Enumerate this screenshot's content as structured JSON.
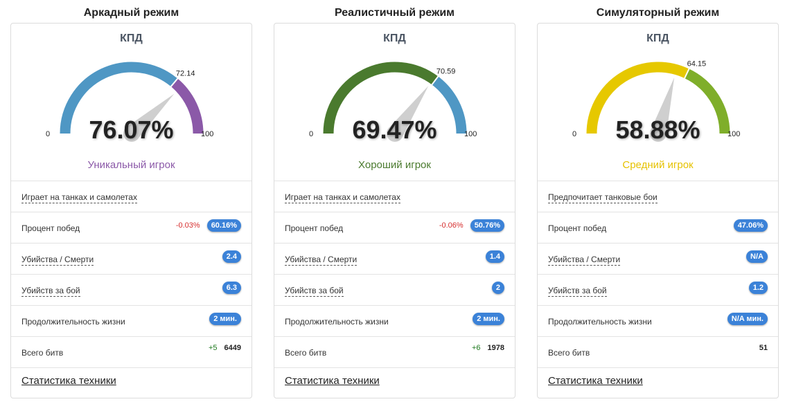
{
  "cards": [
    {
      "title": "Аркадный режим",
      "kpd_label": "КПД",
      "value_text": "76.07%",
      "value": 76.07,
      "marker": 72.14,
      "marker_text": "72.14",
      "min_text": "0",
      "max_text": "100",
      "rating": "Уникальный игрок",
      "rating_color": "#8b59a8",
      "arc_main_color": "#4f97c4",
      "arc_end_color": "#8b59a8",
      "rows": [
        {
          "label": "Играет на танках и самолетах",
          "dotted": true
        },
        {
          "label": "Процент побед",
          "delta": "-0.03%",
          "delta_type": "neg",
          "badge": "60.16%"
        },
        {
          "label": "Убийства / Смерти",
          "dotted": true,
          "badge": "2.4"
        },
        {
          "label": "Убийств за бой",
          "dotted": true,
          "badge": "6.3"
        },
        {
          "label": "Продолжительность жизни",
          "badge": "2 мин."
        },
        {
          "label": "Всего битв",
          "delta": "+5",
          "delta_type": "pos",
          "plain": "6449"
        }
      ],
      "footer_link": "Статистика техники"
    },
    {
      "title": "Реалистичный режим",
      "kpd_label": "КПД",
      "value_text": "69.47%",
      "value": 69.47,
      "marker": 70.59,
      "marker_text": "70.59",
      "min_text": "0",
      "max_text": "100",
      "rating": "Хороший игрок",
      "rating_color": "#4a7a2e",
      "arc_main_color": "#4a7a2e",
      "arc_end_color": "#4f97c4",
      "rows": [
        {
          "label": "Играет на танках и самолетах",
          "dotted": true
        },
        {
          "label": "Процент побед",
          "delta": "-0.06%",
          "delta_type": "neg",
          "badge": "50.76%"
        },
        {
          "label": "Убийства / Смерти",
          "dotted": true,
          "badge": "1.4"
        },
        {
          "label": "Убийств за бой",
          "dotted": true,
          "badge": "2"
        },
        {
          "label": "Продолжительность жизни",
          "badge": "2 мин."
        },
        {
          "label": "Всего битв",
          "delta": "+6",
          "delta_type": "pos",
          "plain": "1978"
        }
      ],
      "footer_link": "Статистика техники"
    },
    {
      "title": "Симуляторный режим",
      "kpd_label": "КПД",
      "value_text": "58.88%",
      "value": 58.88,
      "marker": 64.15,
      "marker_text": "64.15",
      "min_text": "0",
      "max_text": "100",
      "rating": "Средний игрок",
      "rating_color": "#e6c200",
      "arc_main_color": "#e6c800",
      "arc_end_color": "#7fae2a",
      "rows": [
        {
          "label": "Предпочитает танковые бои",
          "dotted": true
        },
        {
          "label": "Процент побед",
          "badge": "47.06%"
        },
        {
          "label": "Убийства / Смерти",
          "dotted": true,
          "badge": "N/A"
        },
        {
          "label": "Убийств за бой",
          "dotted": true,
          "badge": "1.2"
        },
        {
          "label": "Продолжительность жизни",
          "badge": "N/A мин."
        },
        {
          "label": "Всего битв",
          "plain": "51"
        }
      ],
      "footer_link": "Статистика техники"
    }
  ]
}
